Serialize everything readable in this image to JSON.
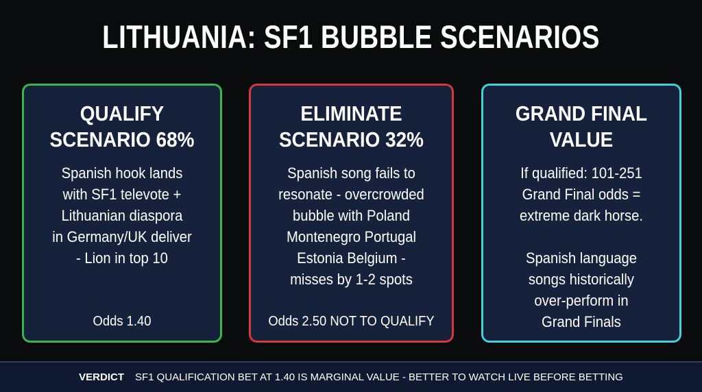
{
  "title": "LITHUANIA: SF1 BUBBLE SCENARIOS",
  "cards": [
    {
      "heading": [
        "QUALIFY",
        "SCENARIO 68%"
      ],
      "body": [
        [
          "Spanish hook lands",
          "with SF1 televote +",
          "Lithuanian diaspora",
          "in Germany/UK deliver",
          "- Lion in top 10"
        ]
      ],
      "footer": "Odds 1.40"
    },
    {
      "heading": [
        "ELIMINATE",
        "SCENARIO 32%"
      ],
      "body": [
        [
          "Spanish song fails to",
          "resonate - overcrowded",
          "bubble with Poland",
          "Montenegro Portugal",
          "Estonia Belgium -",
          "misses by 1-2 spots"
        ]
      ],
      "footer": "Odds 2.50 NOT TO QUALIFY"
    },
    {
      "heading": [
        "GRAND FINAL",
        "VALUE"
      ],
      "body": [
        [
          "If qualified: 101-251",
          "Grand Final odds =",
          "extreme dark horse."
        ],
        [
          "Spanish language",
          "songs historically",
          "over-perform in",
          "Grand Finals"
        ]
      ]
    }
  ],
  "verdict": {
    "label": "VERDICT",
    "text": "SF1 QUALIFICATION BET AT 1.40 IS MARGINAL VALUE - BETTER TO WATCH LIVE BEFORE BETTING"
  }
}
